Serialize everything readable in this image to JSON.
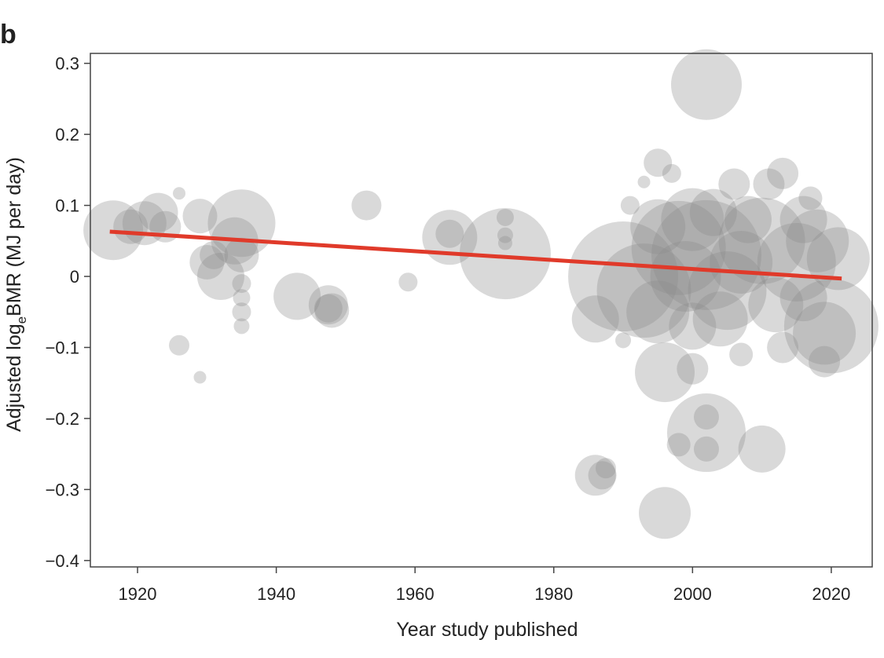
{
  "chart_data": {
    "type": "scatter",
    "panel_label": "b",
    "x_label": "Year study published",
    "y_label": {
      "main": "Adjusted log",
      "sub": "e",
      "rest": "BMR (MJ per day)"
    },
    "xlim": [
      1913.2,
      2025.9
    ],
    "ylim": [
      -0.409,
      0.314
    ],
    "xticks": [
      1920,
      1940,
      1960,
      1980,
      2000,
      2020
    ],
    "yticks": [
      0.3,
      0.2,
      0.1,
      0,
      {
        "value": -0.1,
        "label": "−0.1"
      },
      {
        "value": -0.2,
        "label": "−0.2"
      },
      {
        "value": -0.3,
        "label": "−0.3"
      },
      {
        "value": -0.4,
        "label": "−0.4"
      }
    ],
    "series": [
      {
        "color": "#8c8c8c",
        "x": [
          1916.5,
          1919,
          1921,
          1923,
          1926,
          1924,
          1929,
          1930,
          1931,
          1932,
          1935,
          1934,
          1935,
          1935,
          1935,
          1935,
          1935,
          1926,
          1929,
          1943,
          1947.5,
          1948,
          1947.5,
          1953,
          1959,
          1965,
          1965,
          1973,
          1973,
          1973,
          1973,
          1987,
          1986,
          1987.5,
          1996,
          1996,
          2002,
          2002,
          2002,
          1998,
          2010,
          2002,
          1995,
          1997,
          1993,
          1990,
          1993,
          1998,
          2002,
          2005,
          2006,
          2011,
          2013,
          2010,
          2015,
          2018,
          2020,
          2019,
          2019,
          2021,
          2013,
          2000,
          2007,
          1986,
          1990,
          2000,
          1995,
          2008,
          2016,
          2017,
          1991,
          2000,
          1995,
          2004,
          2012,
          2016,
          2003,
          1999,
          2007
        ],
        "y": [
          0.065,
          0.07,
          0.075,
          0.09,
          0.117,
          0.07,
          0.085,
          0.02,
          0.03,
          0.0,
          0.075,
          0.05,
          0.03,
          -0.01,
          -0.03,
          -0.05,
          -0.07,
          -0.097,
          -0.142,
          -0.028,
          -0.04,
          -0.048,
          -0.045,
          0.1,
          -0.008,
          0.055,
          0.06,
          0.032,
          0.083,
          0.058,
          0.047,
          -0.28,
          -0.28,
          -0.27,
          -0.333,
          -0.135,
          -0.22,
          -0.198,
          -0.243,
          -0.237,
          -0.243,
          0.27,
          0.16,
          0.145,
          0.133,
          0.0,
          -0.02,
          0.04,
          0.03,
          -0.02,
          0.13,
          0.13,
          0.145,
          0.05,
          0.02,
          0.05,
          -0.07,
          -0.08,
          -0.12,
          0.025,
          -0.1,
          -0.13,
          -0.11,
          -0.06,
          -0.09,
          0.08,
          0.07,
          0.08,
          0.08,
          0.11,
          0.1,
          -0.07,
          -0.05,
          -0.06,
          -0.04,
          -0.03,
          0.09,
          0.0,
          0.02
        ],
        "sizes": [
          38,
          22,
          28,
          25,
          8,
          20,
          22,
          22,
          18,
          30,
          43,
          30,
          22,
          12,
          11,
          12,
          10,
          13,
          8,
          30,
          25,
          22,
          18,
          19,
          12,
          35,
          18,
          58,
          11,
          10,
          9,
          18,
          26,
          13,
          33,
          38,
          50,
          16,
          16,
          15,
          30,
          45,
          18,
          12,
          8,
          70,
          60,
          60,
          70,
          50,
          20,
          20,
          20,
          55,
          50,
          40,
          60,
          40,
          20,
          40,
          20,
          20,
          15,
          30,
          10,
          40,
          35,
          30,
          30,
          15,
          12,
          30,
          40,
          35,
          35,
          30,
          30,
          45,
          40
        ]
      }
    ],
    "trend": {
      "x": [
        1916,
        2021.5
      ],
      "y": [
        0.063,
        -0.003
      ],
      "color": "#e03a2a"
    }
  }
}
